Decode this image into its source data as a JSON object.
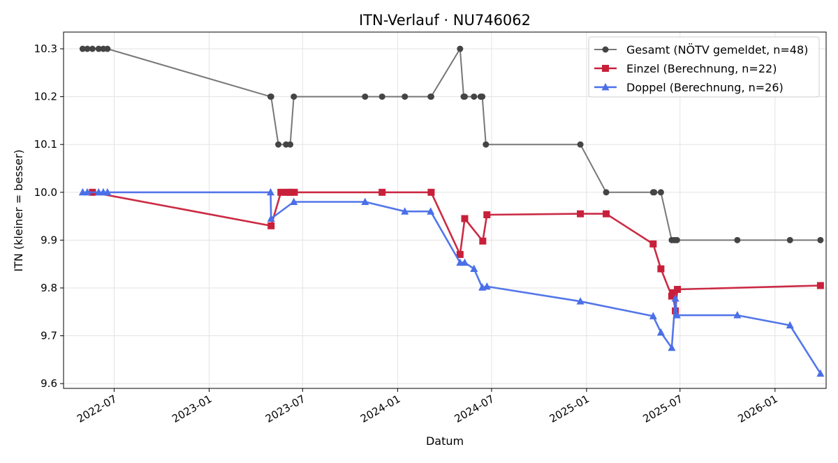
{
  "chart_data": {
    "type": "line",
    "title": "ITN-Verlauf · NU746062",
    "xlabel": "Datum",
    "ylabel": "ITN  (kleiner = besser)",
    "xlim": [
      "2022-03-25",
      "2026-04-10"
    ],
    "ylim": [
      9.59,
      10.335
    ],
    "grid": true,
    "legend_position": "top-right",
    "x_ticks": [
      "2022-07",
      "2023-01",
      "2023-07",
      "2024-01",
      "2024-07",
      "2025-01",
      "2025-07",
      "2026-01"
    ],
    "y_ticks": [
      "9.6",
      "9.7",
      "9.8",
      "9.9",
      "10.0",
      "10.1",
      "10.2",
      "10.3"
    ],
    "series": [
      {
        "name": "Gesamt (NÖTV gemeldet, n=48)",
        "color": "#444444",
        "marker": "circle",
        "points": [
          [
            "2022-05-01",
            10.3
          ],
          [
            "2022-05-10",
            10.3
          ],
          [
            "2022-05-20",
            10.3
          ],
          [
            "2022-06-01",
            10.3
          ],
          [
            "2022-06-10",
            10.3
          ],
          [
            "2022-06-18",
            10.3
          ],
          [
            "2023-04-30",
            10.2
          ],
          [
            "2023-05-01",
            10.2
          ],
          [
            "2023-05-15",
            10.1
          ],
          [
            "2023-05-30",
            10.1
          ],
          [
            "2023-06-07",
            10.1
          ],
          [
            "2023-06-14",
            10.2
          ],
          [
            "2023-10-30",
            10.2
          ],
          [
            "2023-12-02",
            10.2
          ],
          [
            "2024-01-15",
            10.2
          ],
          [
            "2024-03-05",
            10.2
          ],
          [
            "2024-03-06",
            10.2
          ],
          [
            "2024-05-01",
            10.3
          ],
          [
            "2024-05-08",
            10.2
          ],
          [
            "2024-05-10",
            10.2
          ],
          [
            "2024-05-28",
            10.2
          ],
          [
            "2024-06-10",
            10.2
          ],
          [
            "2024-06-13",
            10.2
          ],
          [
            "2024-06-20",
            10.1
          ],
          [
            "2024-12-20",
            10.1
          ],
          [
            "2025-02-08",
            10.0
          ],
          [
            "2025-05-10",
            10.0
          ],
          [
            "2025-05-12",
            10.0
          ],
          [
            "2025-05-25",
            10.0
          ],
          [
            "2025-06-15",
            9.9
          ],
          [
            "2025-06-20",
            9.9
          ],
          [
            "2025-06-25",
            9.9
          ],
          [
            "2025-10-20",
            9.9
          ],
          [
            "2026-01-30",
            9.9
          ],
          [
            "2026-03-30",
            9.9
          ]
        ]
      },
      {
        "name": "Einzel (Berechnung, n=22)",
        "color": "#c8203a",
        "marker": "square",
        "points": [
          [
            "2022-05-20",
            10.0
          ],
          [
            "2023-05-01",
            9.93
          ],
          [
            "2023-05-20",
            10.0
          ],
          [
            "2023-06-01",
            10.0
          ],
          [
            "2023-06-07",
            10.0
          ],
          [
            "2023-06-15",
            10.0
          ],
          [
            "2023-12-02",
            10.0
          ],
          [
            "2024-03-06",
            10.0
          ],
          [
            "2024-05-01",
            9.87
          ],
          [
            "2024-05-10",
            9.945
          ],
          [
            "2024-06-14",
            9.898
          ],
          [
            "2024-06-22",
            9.953
          ],
          [
            "2024-12-20",
            9.955
          ],
          [
            "2025-02-08",
            9.955
          ],
          [
            "2025-05-10",
            9.892
          ],
          [
            "2025-05-25",
            9.84
          ],
          [
            "2025-06-15",
            9.783
          ],
          [
            "2025-06-17",
            9.79
          ],
          [
            "2025-06-22",
            9.752
          ],
          [
            "2025-06-26",
            9.797
          ],
          [
            "2026-03-30",
            9.805
          ]
        ]
      },
      {
        "name": "Doppel (Berechnung, n=26)",
        "color": "#4a6fe8",
        "marker": "triangle",
        "points": [
          [
            "2022-05-01",
            10.0
          ],
          [
            "2022-05-10",
            10.0
          ],
          [
            "2022-06-01",
            10.0
          ],
          [
            "2022-06-10",
            10.0
          ],
          [
            "2022-06-18",
            10.0
          ],
          [
            "2023-04-30",
            10.0
          ],
          [
            "2023-05-01",
            9.945
          ],
          [
            "2023-06-14",
            9.98
          ],
          [
            "2023-10-30",
            9.98
          ],
          [
            "2024-01-15",
            9.96
          ],
          [
            "2024-03-05",
            9.96
          ],
          [
            "2024-05-01",
            9.853
          ],
          [
            "2024-05-10",
            9.853
          ],
          [
            "2024-05-28",
            9.84
          ],
          [
            "2024-06-13",
            9.801
          ],
          [
            "2024-06-22",
            9.803
          ],
          [
            "2024-12-20",
            9.772
          ],
          [
            "2025-05-10",
            9.741
          ],
          [
            "2025-05-25",
            9.707
          ],
          [
            "2025-06-15",
            9.675
          ],
          [
            "2025-06-22",
            9.778
          ],
          [
            "2025-06-25",
            9.743
          ],
          [
            "2025-10-20",
            9.743
          ],
          [
            "2026-01-30",
            9.722
          ],
          [
            "2026-03-30",
            9.621
          ]
        ]
      }
    ]
  }
}
